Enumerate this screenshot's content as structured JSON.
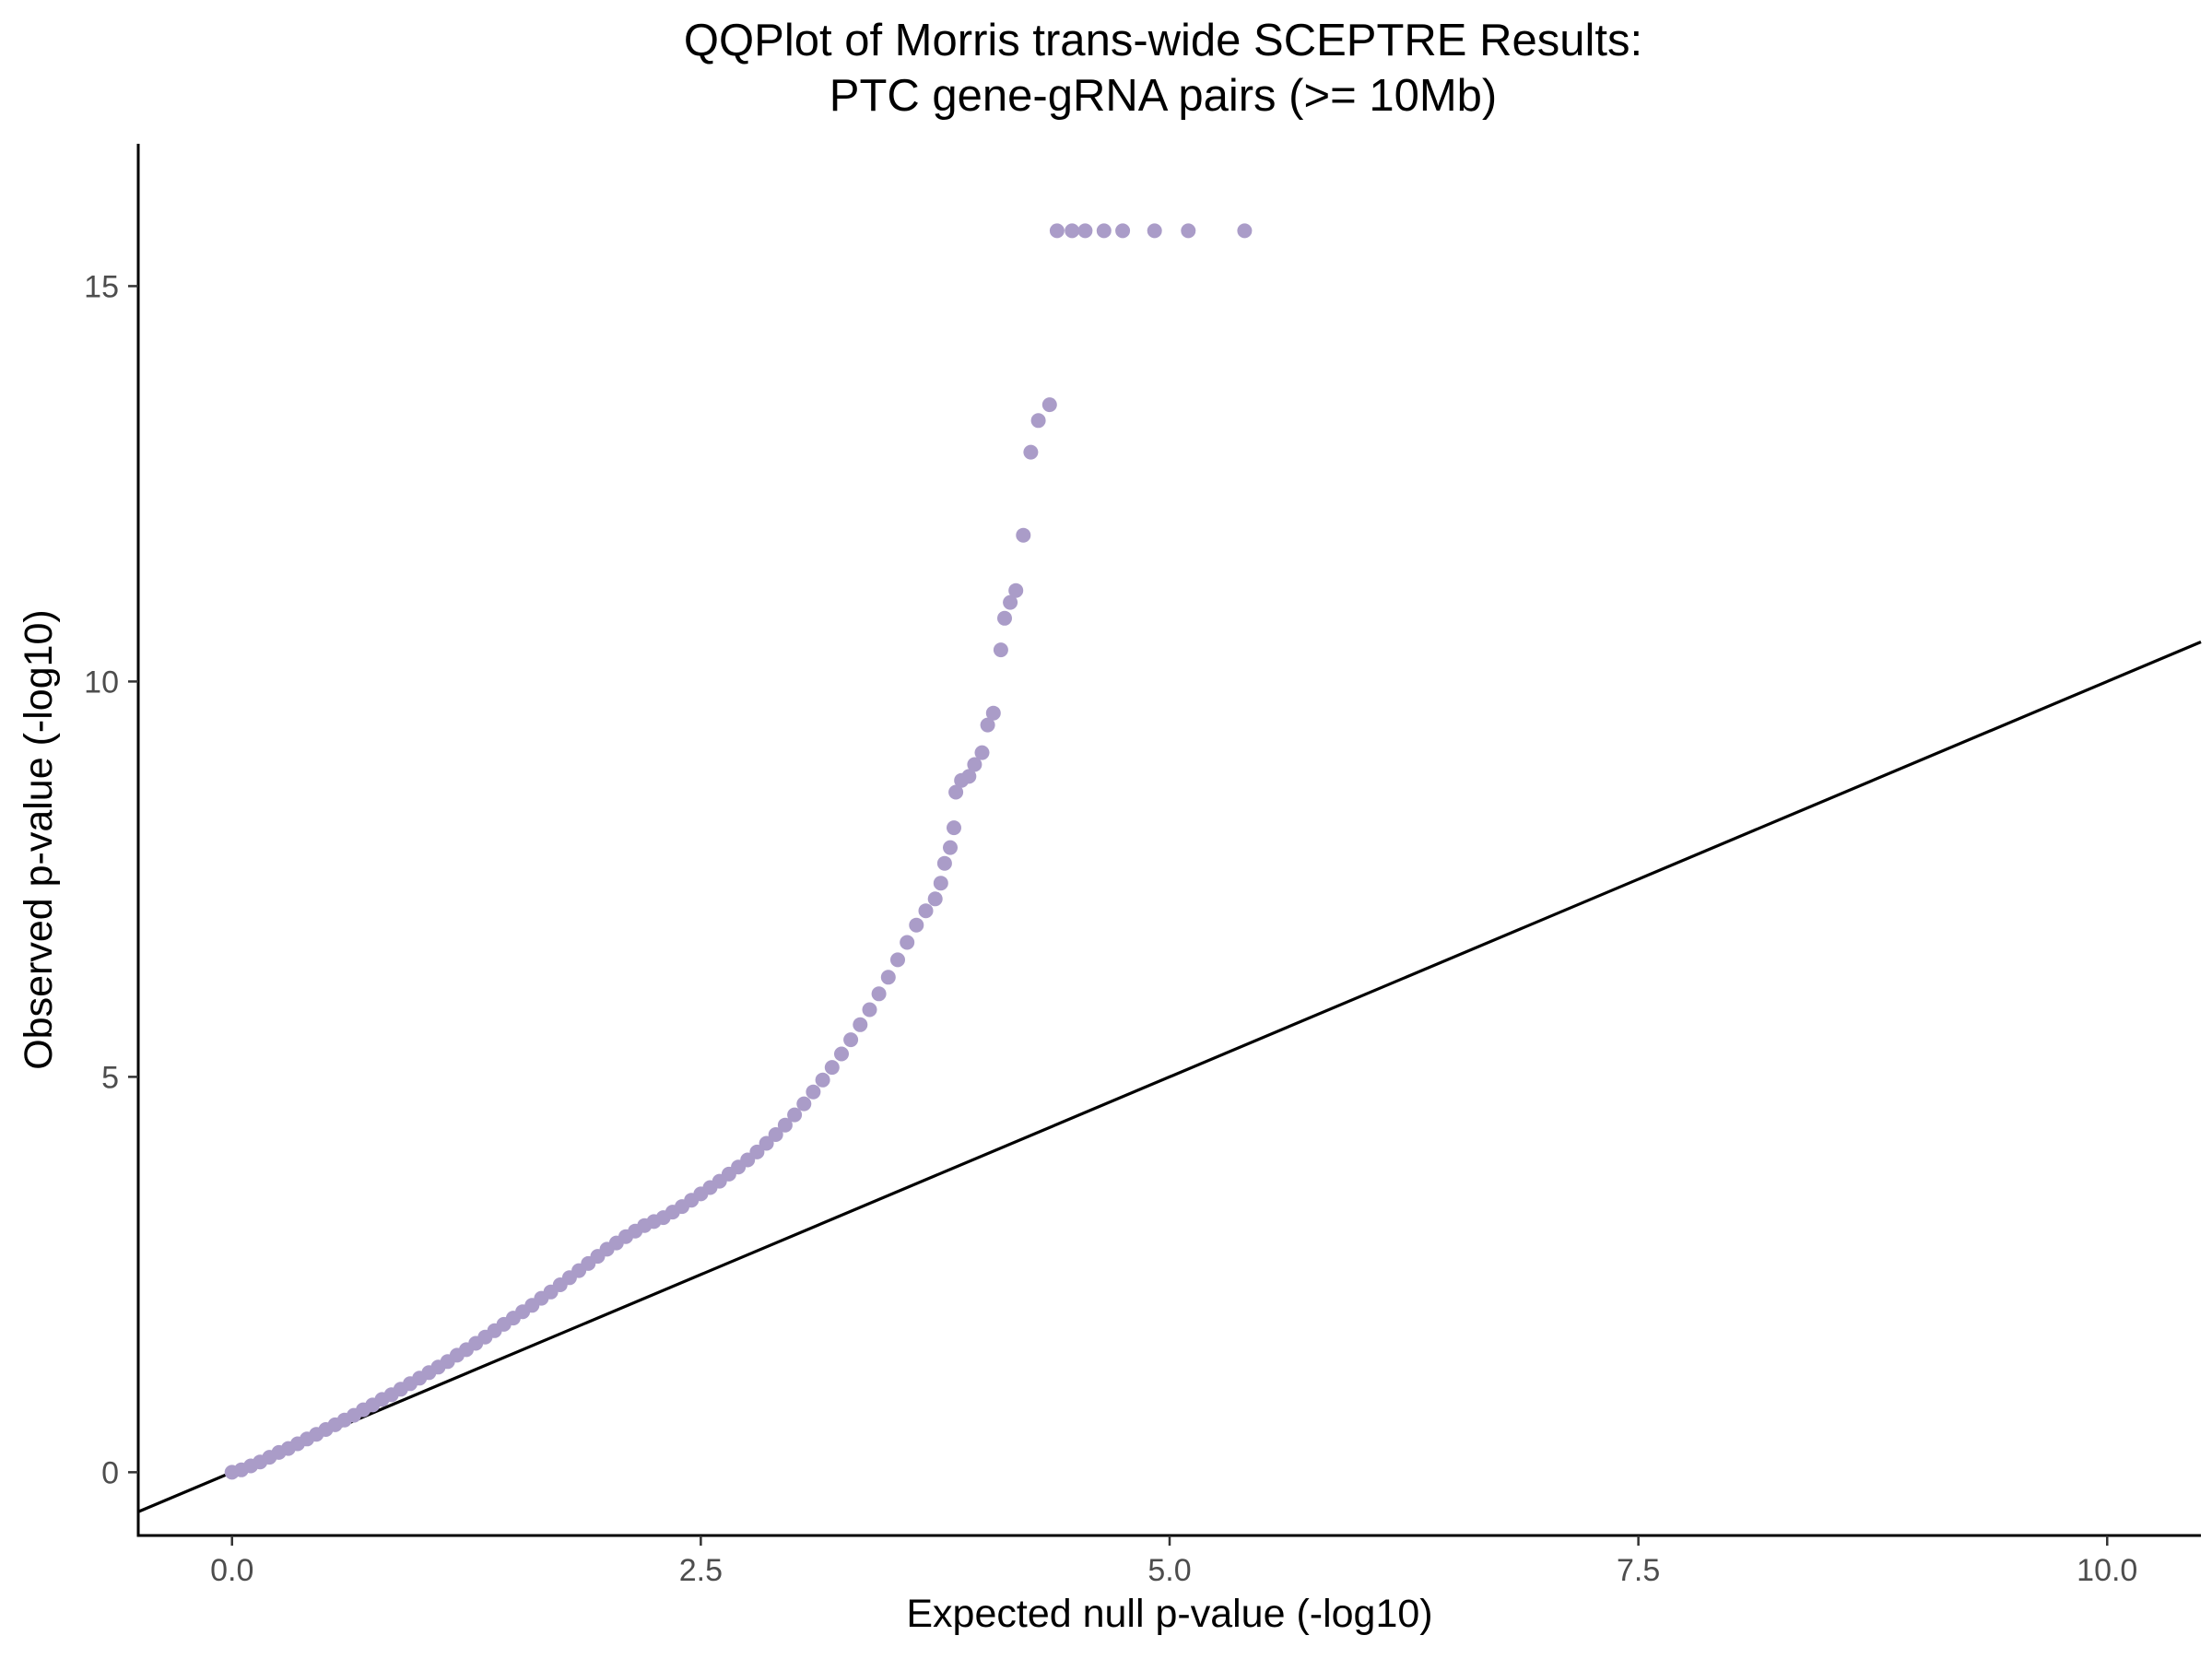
{
  "chart_data": {
    "type": "scatter",
    "title_lines": [
      "QQPlot of Morris trans-wide SCEPTRE Results:",
      "PTC gene-gRNA pairs (>= 10Mb)"
    ],
    "xlabel": "Expected null p-value (-log10)",
    "ylabel": "Observed p-value (-log10)",
    "xlim": [
      -0.5,
      10.5
    ],
    "ylim": [
      -0.8,
      16.8
    ],
    "x_ticks": [
      0,
      2.5,
      5,
      7.5,
      10
    ],
    "x_tick_labels": [
      "0.0",
      "2.5",
      "5.0",
      "7.5",
      "10.0"
    ],
    "y_ticks": [
      0,
      5,
      10,
      15
    ],
    "y_tick_labels": [
      "0",
      "5",
      "10",
      "15"
    ],
    "grid": false,
    "legend": "none",
    "point_color": "#aa9cc8",
    "reference_line": {
      "slope": 1,
      "intercept": 0,
      "color": "#000000"
    },
    "points": [
      [
        0.0,
        0.0
      ],
      [
        0.05,
        0.03
      ],
      [
        0.1,
        0.08
      ],
      [
        0.15,
        0.13
      ],
      [
        0.2,
        0.19
      ],
      [
        0.25,
        0.25
      ],
      [
        0.3,
        0.3
      ],
      [
        0.35,
        0.36
      ],
      [
        0.4,
        0.42
      ],
      [
        0.45,
        0.48
      ],
      [
        0.5,
        0.54
      ],
      [
        0.55,
        0.6
      ],
      [
        0.6,
        0.66
      ],
      [
        0.65,
        0.72
      ],
      [
        0.7,
        0.79
      ],
      [
        0.75,
        0.85
      ],
      [
        0.8,
        0.92
      ],
      [
        0.85,
        0.98
      ],
      [
        0.9,
        1.05
      ],
      [
        0.95,
        1.12
      ],
      [
        1.0,
        1.19
      ],
      [
        1.05,
        1.26
      ],
      [
        1.1,
        1.33
      ],
      [
        1.15,
        1.4
      ],
      [
        1.2,
        1.48
      ],
      [
        1.25,
        1.55
      ],
      [
        1.3,
        1.63
      ],
      [
        1.35,
        1.71
      ],
      [
        1.4,
        1.79
      ],
      [
        1.45,
        1.87
      ],
      [
        1.5,
        1.95
      ],
      [
        1.55,
        2.03
      ],
      [
        1.6,
        2.11
      ],
      [
        1.65,
        2.2
      ],
      [
        1.7,
        2.28
      ],
      [
        1.75,
        2.37
      ],
      [
        1.8,
        2.46
      ],
      [
        1.85,
        2.55
      ],
      [
        1.9,
        2.64
      ],
      [
        1.95,
        2.73
      ],
      [
        2.0,
        2.82
      ],
      [
        2.05,
        2.9
      ],
      [
        2.1,
        2.98
      ],
      [
        2.15,
        3.05
      ],
      [
        2.2,
        3.12
      ],
      [
        2.25,
        3.17
      ],
      [
        2.3,
        3.22
      ],
      [
        2.35,
        3.29
      ],
      [
        2.4,
        3.36
      ],
      [
        2.45,
        3.44
      ],
      [
        2.5,
        3.52
      ],
      [
        2.55,
        3.6
      ],
      [
        2.6,
        3.68
      ],
      [
        2.65,
        3.77
      ],
      [
        2.7,
        3.86
      ],
      [
        2.75,
        3.95
      ],
      [
        2.8,
        4.05
      ],
      [
        2.85,
        4.16
      ],
      [
        2.9,
        4.27
      ],
      [
        2.95,
        4.39
      ],
      [
        3.0,
        4.52
      ],
      [
        3.05,
        4.66
      ],
      [
        3.1,
        4.81
      ],
      [
        3.15,
        4.96
      ],
      [
        3.2,
        5.12
      ],
      [
        3.25,
        5.29
      ],
      [
        3.3,
        5.47
      ],
      [
        3.35,
        5.66
      ],
      [
        3.4,
        5.85
      ],
      [
        3.45,
        6.05
      ],
      [
        3.5,
        6.26
      ],
      [
        3.55,
        6.48
      ],
      [
        3.6,
        6.7
      ],
      [
        3.65,
        6.92
      ],
      [
        3.7,
        7.1
      ],
      [
        3.75,
        7.25
      ],
      [
        3.78,
        7.45
      ],
      [
        3.8,
        7.7
      ],
      [
        3.83,
        7.9
      ],
      [
        3.85,
        8.15
      ],
      [
        3.86,
        8.6
      ],
      [
        3.89,
        8.75
      ],
      [
        3.93,
        8.8
      ],
      [
        3.96,
        8.95
      ],
      [
        4.0,
        9.1
      ],
      [
        4.03,
        9.45
      ],
      [
        4.06,
        9.6
      ],
      [
        4.1,
        10.4
      ],
      [
        4.12,
        10.8
      ],
      [
        4.15,
        11.0
      ],
      [
        4.18,
        11.15
      ],
      [
        4.22,
        11.85
      ],
      [
        4.26,
        12.9
      ],
      [
        4.3,
        13.3
      ],
      [
        4.36,
        13.5
      ],
      [
        4.4,
        15.7
      ],
      [
        4.48,
        15.7
      ],
      [
        4.55,
        15.7
      ],
      [
        4.65,
        15.7
      ],
      [
        4.75,
        15.7
      ],
      [
        4.92,
        15.7
      ],
      [
        5.1,
        15.7
      ],
      [
        5.4,
        15.7
      ]
    ]
  }
}
